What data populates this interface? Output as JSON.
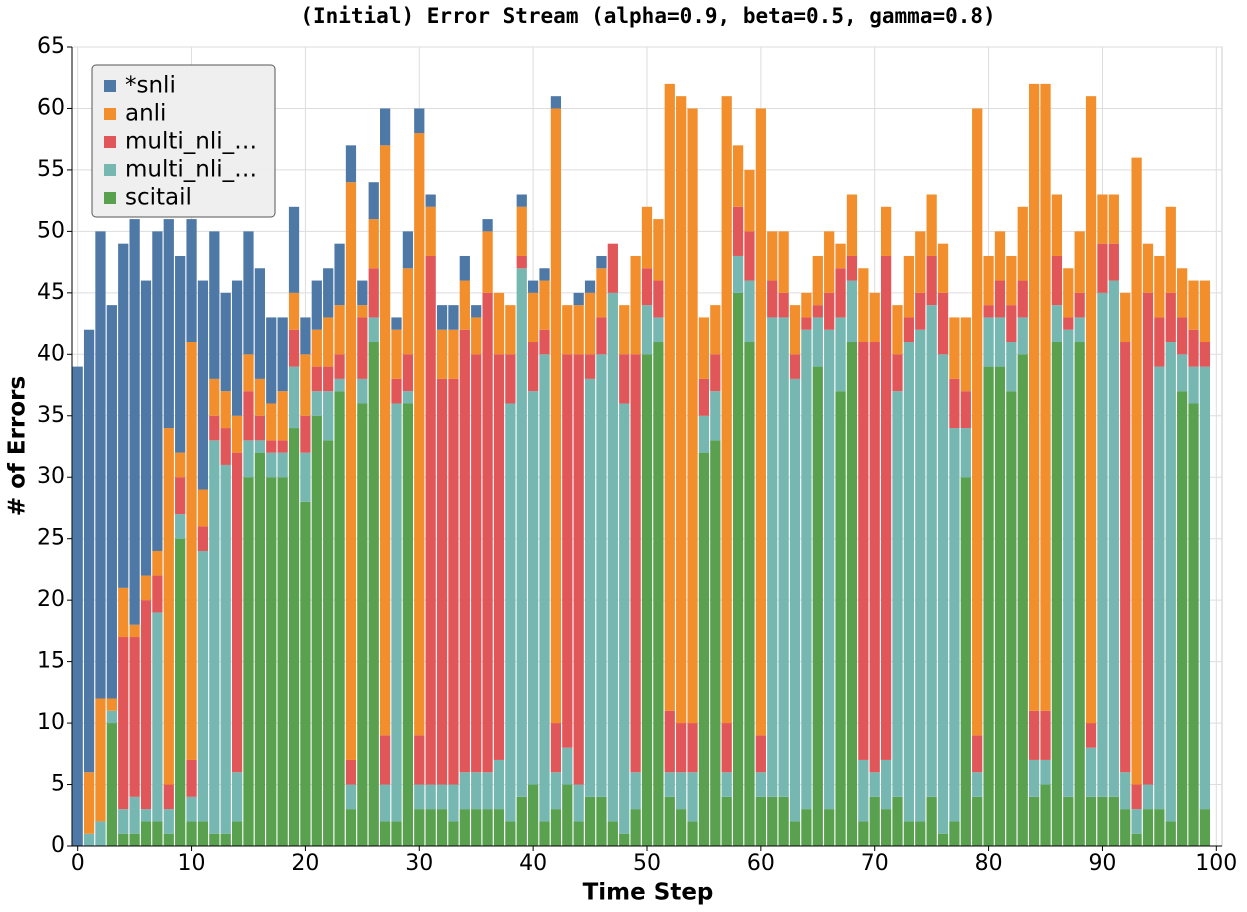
{
  "chart_data": {
    "type": "stacked-bar",
    "title": "(Initial) Error Stream (alpha=0.9, beta=0.5, gamma=0.8)",
    "x_label": "Time Step",
    "y_label": "# of Errors",
    "x": [
      0,
      1,
      2,
      3,
      4,
      5,
      6,
      7,
      8,
      9,
      10,
      11,
      12,
      13,
      14,
      15,
      16,
      17,
      18,
      19,
      20,
      21,
      22,
      23,
      24,
      25,
      26,
      27,
      28,
      29,
      30,
      31,
      32,
      33,
      34,
      35,
      36,
      37,
      38,
      39,
      40,
      41,
      42,
      43,
      44,
      45,
      46,
      47,
      48,
      49,
      50,
      51,
      52,
      53,
      54,
      55,
      56,
      57,
      58,
      59,
      60,
      61,
      62,
      63,
      64,
      65,
      66,
      67,
      68,
      69,
      70,
      71,
      72,
      73,
      74,
      75,
      76,
      77,
      78,
      79,
      80,
      81,
      82,
      83,
      84,
      85,
      86,
      87,
      88,
      89,
      90,
      91,
      92,
      93,
      94,
      95,
      96,
      97,
      98,
      99
    ],
    "series": [
      {
        "name": "*snli",
        "color": "#4e79a7",
        "values": [
          39,
          36,
          38,
          32,
          28,
          33,
          24,
          26,
          17,
          16,
          10,
          17,
          12,
          8,
          11,
          10,
          9,
          7,
          6,
          7,
          3,
          4,
          4,
          5,
          3,
          2,
          3,
          3,
          1,
          3,
          2,
          1,
          2,
          2,
          2,
          1,
          1,
          0,
          0,
          1,
          1,
          1,
          1,
          0,
          1,
          1,
          1,
          0,
          0,
          0,
          0,
          0,
          0,
          0,
          0,
          0,
          0,
          0,
          0,
          0,
          0,
          0,
          0,
          0,
          0,
          0,
          0,
          0,
          0,
          0,
          0,
          0,
          0,
          0,
          0,
          0,
          0,
          0,
          0,
          0,
          0,
          0,
          0,
          0,
          0,
          0,
          0,
          0,
          0,
          0,
          0,
          0,
          0,
          0,
          0,
          0,
          0,
          0,
          0,
          0
        ]
      },
      {
        "name": "anli",
        "color": "#f28e2b",
        "values": [
          0,
          5,
          10,
          1,
          4,
          1,
          2,
          2,
          29,
          2,
          34,
          3,
          3,
          3,
          3,
          3,
          3,
          3,
          4,
          3,
          5,
          3,
          4,
          4,
          47,
          1,
          4,
          48,
          4,
          7,
          49,
          4,
          4,
          4,
          4,
          3,
          5,
          5,
          4,
          4,
          4,
          4,
          50,
          4,
          4,
          5,
          4,
          0,
          4,
          8,
          5,
          5,
          51,
          51,
          50,
          5,
          4,
          51,
          5,
          5,
          51,
          4,
          5,
          4,
          2,
          4,
          5,
          2,
          5,
          6,
          4,
          4,
          4,
          5,
          5,
          5,
          4,
          5,
          6,
          51,
          4,
          4,
          4,
          6,
          51,
          51,
          5,
          4,
          5,
          51,
          4,
          4,
          4,
          51,
          4,
          5,
          7,
          4,
          4,
          5
        ]
      },
      {
        "name": "multi_nli_…",
        "color": "#e15759",
        "values": [
          0,
          0,
          0,
          0,
          14,
          13,
          17,
          3,
          2,
          3,
          3,
          2,
          2,
          3,
          26,
          4,
          2,
          1,
          1,
          3,
          3,
          2,
          2,
          2,
          2,
          5,
          4,
          4,
          2,
          3,
          4,
          43,
          33,
          33,
          36,
          34,
          39,
          33,
          4,
          1,
          4,
          2,
          4,
          32,
          35,
          2,
          3,
          4,
          4,
          34,
          3,
          3,
          5,
          4,
          4,
          3,
          3,
          4,
          4,
          4,
          3,
          3,
          2,
          2,
          1,
          1,
          3,
          4,
          2,
          34,
          35,
          41,
          3,
          2,
          3,
          4,
          5,
          4,
          3,
          3,
          1,
          3,
          3,
          3,
          4,
          4,
          4,
          1,
          2,
          2,
          4,
          3,
          35,
          2,
          40,
          4,
          4,
          3,
          3,
          2
        ]
      },
      {
        "name": "multi_nli_…",
        "color": "#76b7b2",
        "values": [
          0,
          1,
          2,
          1,
          2,
          3,
          1,
          17,
          2,
          2,
          2,
          22,
          32,
          30,
          4,
          3,
          1,
          2,
          2,
          5,
          4,
          2,
          4,
          1,
          2,
          2,
          2,
          3,
          34,
          1,
          2,
          2,
          2,
          3,
          3,
          3,
          3,
          4,
          34,
          43,
          32,
          38,
          3,
          3,
          3,
          34,
          36,
          43,
          35,
          3,
          4,
          2,
          2,
          3,
          4,
          3,
          4,
          2,
          3,
          5,
          2,
          39,
          39,
          36,
          39,
          4,
          39,
          6,
          5,
          5,
          2,
          4,
          33,
          39,
          40,
          40,
          39,
          32,
          4,
          2,
          4,
          4,
          4,
          3,
          3,
          2,
          3,
          38,
          2,
          4,
          41,
          42,
          3,
          2,
          2,
          36,
          39,
          3,
          3,
          36
        ]
      },
      {
        "name": "scitail",
        "color": "#59a14f",
        "values": [
          0,
          0,
          0,
          10,
          1,
          1,
          2,
          2,
          1,
          25,
          2,
          2,
          1,
          1,
          2,
          30,
          32,
          30,
          30,
          34,
          28,
          35,
          33,
          37,
          3,
          36,
          41,
          2,
          2,
          36,
          3,
          3,
          3,
          2,
          3,
          3,
          3,
          3,
          2,
          4,
          5,
          2,
          3,
          5,
          2,
          4,
          4,
          2,
          1,
          3,
          40,
          41,
          4,
          3,
          2,
          32,
          33,
          4,
          45,
          41,
          4,
          4,
          4,
          2,
          3,
          39,
          3,
          37,
          41,
          2,
          4,
          3,
          4,
          2,
          2,
          4,
          1,
          2,
          30,
          4,
          39,
          39,
          37,
          40,
          4,
          5,
          41,
          4,
          41,
          4,
          4,
          4,
          3,
          1,
          3,
          3,
          2,
          37,
          36,
          3
        ]
      }
    ],
    "xlim": [
      -0.5,
      100.5
    ],
    "xticks": [
      0,
      10,
      20,
      30,
      40,
      50,
      60,
      70,
      80,
      90,
      100
    ],
    "ylim": [
      0,
      65
    ],
    "yticks": [
      0,
      5,
      10,
      15,
      20,
      25,
      30,
      35,
      40,
      45,
      50,
      55,
      60,
      65
    ],
    "grid": true,
    "legend": "upper left"
  }
}
